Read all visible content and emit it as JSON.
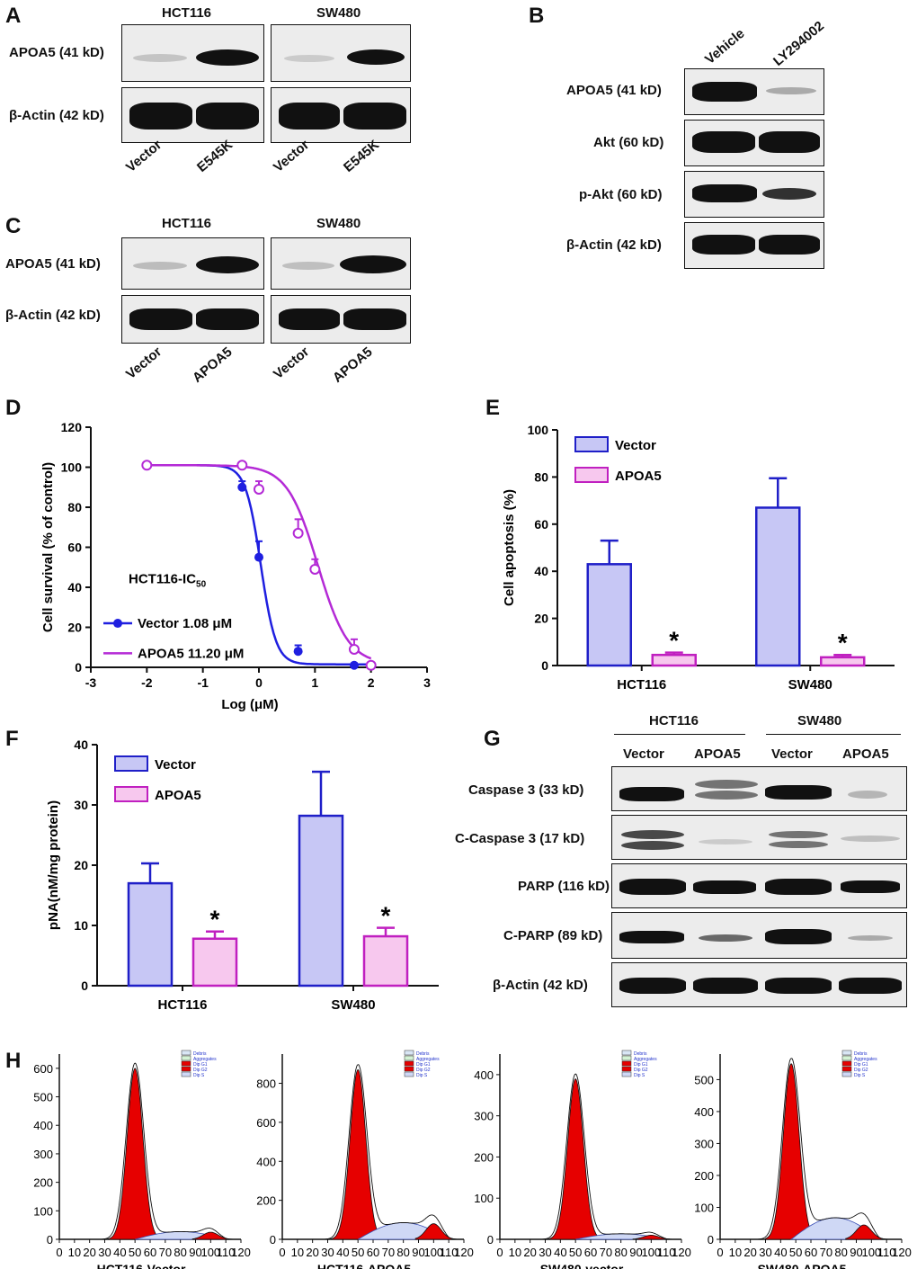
{
  "panels": {
    "A": {
      "letter": "A",
      "groups": [
        "HCT116",
        "SW480"
      ],
      "rows": [
        "APOA5 (41 kD)",
        "β-Actin (42 kD)"
      ],
      "lanes": [
        "Vector",
        "E545K",
        "Vector",
        "E545K"
      ]
    },
    "B": {
      "letter": "B",
      "lanes": [
        "Vehicle",
        "LY294002"
      ],
      "rows": [
        "APOA5 (41 kD)",
        "Akt (60 kD)",
        "p-Akt (60 kD)",
        "β-Actin (42 kD)"
      ]
    },
    "C": {
      "letter": "C",
      "groups": [
        "HCT116",
        "SW480"
      ],
      "rows": [
        "APOA5 (41 kD)",
        "β-Actin (42 kD)"
      ],
      "lanes": [
        "Vector",
        "APOA5",
        "Vector",
        "APOA5"
      ]
    },
    "D": {
      "letter": "D"
    },
    "E": {
      "letter": "E"
    },
    "F": {
      "letter": "F"
    },
    "G": {
      "letter": "G",
      "groups": [
        "HCT116",
        "SW480"
      ],
      "lanes": [
        "Vector",
        "APOA5",
        "Vector",
        "APOA5"
      ],
      "rows": [
        "Caspase 3 (33 kD)",
        "C-Caspase 3 (17 kD)",
        "PARP (116 kD)",
        "C-PARP (89 kD)",
        "β-Actin (42 kD)"
      ]
    },
    "H": {
      "letter": "H"
    }
  },
  "chart_data": [
    {
      "id": "D",
      "type": "line",
      "xlabel": "Log (μM)",
      "ylabel": "Cell survival (% of control)",
      "xlim": [
        -3,
        3
      ],
      "ylim": [
        0,
        120
      ],
      "xticks": [
        -3,
        -2,
        -1,
        0,
        1,
        2,
        3
      ],
      "yticks": [
        0,
        20,
        40,
        60,
        80,
        100,
        120
      ],
      "annotation": "HCT116-IC",
      "annotation_sub": "50",
      "series": [
        {
          "name": "Vector 1.08 μM",
          "color": "#1f1fe0",
          "marker": "filled-circle",
          "x": [
            -2,
            -0.3,
            0,
            0.7,
            1.7,
            2
          ],
          "y": [
            101,
            90,
            55,
            8,
            1,
            1
          ],
          "err": [
            1,
            3,
            8,
            3,
            1,
            1
          ],
          "ic50_log": 0.033
        },
        {
          "name": "APOA5 11.20 μM",
          "color": "#b42ad6",
          "marker": "open-circle",
          "x": [
            -2,
            -0.3,
            0,
            0.7,
            1,
            1.7,
            2
          ],
          "y": [
            101,
            101,
            89,
            67,
            49,
            9,
            1
          ],
          "err": [
            1,
            1,
            4,
            7,
            5,
            5,
            1
          ],
          "ic50_log": 1.049
        }
      ]
    },
    {
      "id": "E",
      "type": "bar",
      "xlabel": "",
      "ylabel": "Cell apoptosis (%)",
      "ylim": [
        0,
        100
      ],
      "yticks": [
        0,
        20,
        40,
        60,
        80,
        100
      ],
      "categories": [
        "HCT116",
        "SW480"
      ],
      "series": [
        {
          "name": "Vector",
          "fill": "#c7c7f5",
          "stroke": "#1f1fc8",
          "values": [
            43,
            67
          ],
          "err": [
            10,
            12.5
          ]
        },
        {
          "name": "APOA5",
          "fill": "#f7c8ee",
          "stroke": "#c020c0",
          "values": [
            4.5,
            3.5
          ],
          "err": [
            1,
            1
          ]
        }
      ],
      "significance": [
        "*",
        "*"
      ]
    },
    {
      "id": "F",
      "type": "bar",
      "xlabel": "",
      "ylabel": "pNA(nM/mg protein)",
      "ylim": [
        0,
        40
      ],
      "yticks": [
        0,
        10,
        20,
        30,
        40
      ],
      "categories": [
        "HCT116",
        "SW480"
      ],
      "series": [
        {
          "name": "Vector",
          "fill": "#c7c7f5",
          "stroke": "#1f1fc8",
          "values": [
            17,
            28.2
          ],
          "err": [
            3.3,
            7.3
          ]
        },
        {
          "name": "APOA5",
          "fill": "#f7c8ee",
          "stroke": "#c020c0",
          "values": [
            7.8,
            8.2
          ],
          "err": [
            1.2,
            1.4
          ]
        }
      ],
      "significance": [
        "*",
        "*"
      ]
    },
    {
      "id": "H",
      "type": "area",
      "legend": [
        "Debris",
        "Aggregates",
        "Dip G1",
        "Dip G2",
        "Dip S"
      ],
      "xticks": [
        0,
        10,
        20,
        30,
        40,
        50,
        60,
        70,
        80,
        90,
        100,
        110,
        120
      ],
      "xlim": [
        0,
        120
      ],
      "histograms": [
        {
          "title": "HCT116-Vector",
          "ylim": [
            0,
            650
          ],
          "yticks": [
            0,
            100,
            200,
            300,
            400,
            500,
            600
          ],
          "g1_peak": 50,
          "g1_height": 600,
          "g2_peak": 100,
          "g2_height": 25,
          "s_level": 30
        },
        {
          "title": "HCT116-APOA5",
          "ylim": [
            0,
            950
          ],
          "yticks": [
            0,
            200,
            400,
            600,
            800
          ],
          "g1_peak": 50,
          "g1_height": 870,
          "g2_peak": 100,
          "g2_height": 80,
          "s_level": 95
        },
        {
          "title": "SW480-vector",
          "ylim": [
            0,
            450
          ],
          "yticks": [
            0,
            100,
            200,
            300,
            400
          ],
          "g1_peak": 50,
          "g1_height": 390,
          "g2_peak": 100,
          "g2_height": 10,
          "s_level": 15
        },
        {
          "title": "SW480-APOA5",
          "ylim": [
            0,
            580
          ],
          "yticks": [
            0,
            100,
            200,
            300,
            400,
            500
          ],
          "g1_peak": 47,
          "g1_height": 550,
          "g2_peak": 95,
          "g2_height": 45,
          "s_level": 75
        }
      ]
    }
  ]
}
